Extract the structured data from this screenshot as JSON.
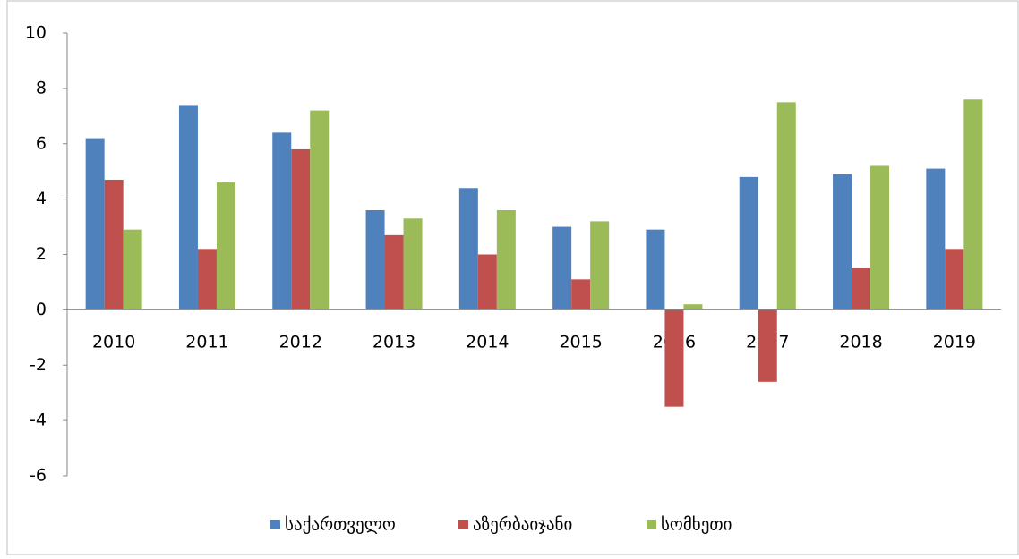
{
  "chart_data": {
    "type": "bar",
    "categories": [
      "2010",
      "2011",
      "2012",
      "2013",
      "2014",
      "2015",
      "2016",
      "2017",
      "2018",
      "2019"
    ],
    "series": [
      {
        "name": "საქართველო",
        "color": "#4f81bd",
        "values": [
          6.2,
          7.4,
          6.4,
          3.6,
          4.4,
          3.0,
          2.9,
          4.8,
          4.9,
          5.1
        ]
      },
      {
        "name": "აზერბაიჯანი",
        "color": "#c0504d",
        "values": [
          4.7,
          2.2,
          5.8,
          2.7,
          2.0,
          1.1,
          -3.5,
          -2.6,
          1.5,
          2.2
        ]
      },
      {
        "name": "სომხეთი",
        "color": "#9bbb59",
        "values": [
          2.9,
          4.6,
          7.2,
          3.3,
          3.6,
          3.2,
          0.2,
          7.5,
          5.2,
          7.6
        ]
      }
    ],
    "ylim": [
      -6,
      10
    ],
    "yticks": [
      -6,
      -4,
      -2,
      0,
      2,
      4,
      6,
      8,
      10
    ],
    "grid": false,
    "legend": "bottom"
  }
}
